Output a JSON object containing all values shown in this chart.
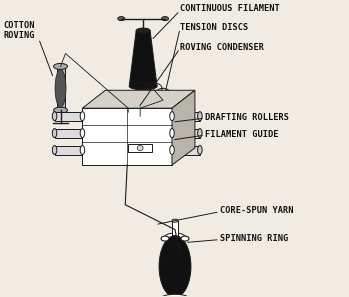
{
  "bg_color": "#f0ece4",
  "line_color": "#1a1a1a",
  "fontsize": 5.8,
  "labels": {
    "cotton_roving": "COTTON\nROVING",
    "continuous_filament": "CONTINUOUS FILAMENT",
    "tension_discs": "TENSION DISCS",
    "roving_condenser": "ROVING CONDENSER",
    "drafting_rollers": "DRAFTING ROLLERS",
    "filament_guide": "FILAMENT GUIDE",
    "core_spun_yarn": "CORE-SPUN YARN",
    "spinning_ring": "SPINNING RING"
  },
  "arrow_color": "#1a1a1a",
  "roller_color": "#cccccc",
  "dark_color": "#111111"
}
